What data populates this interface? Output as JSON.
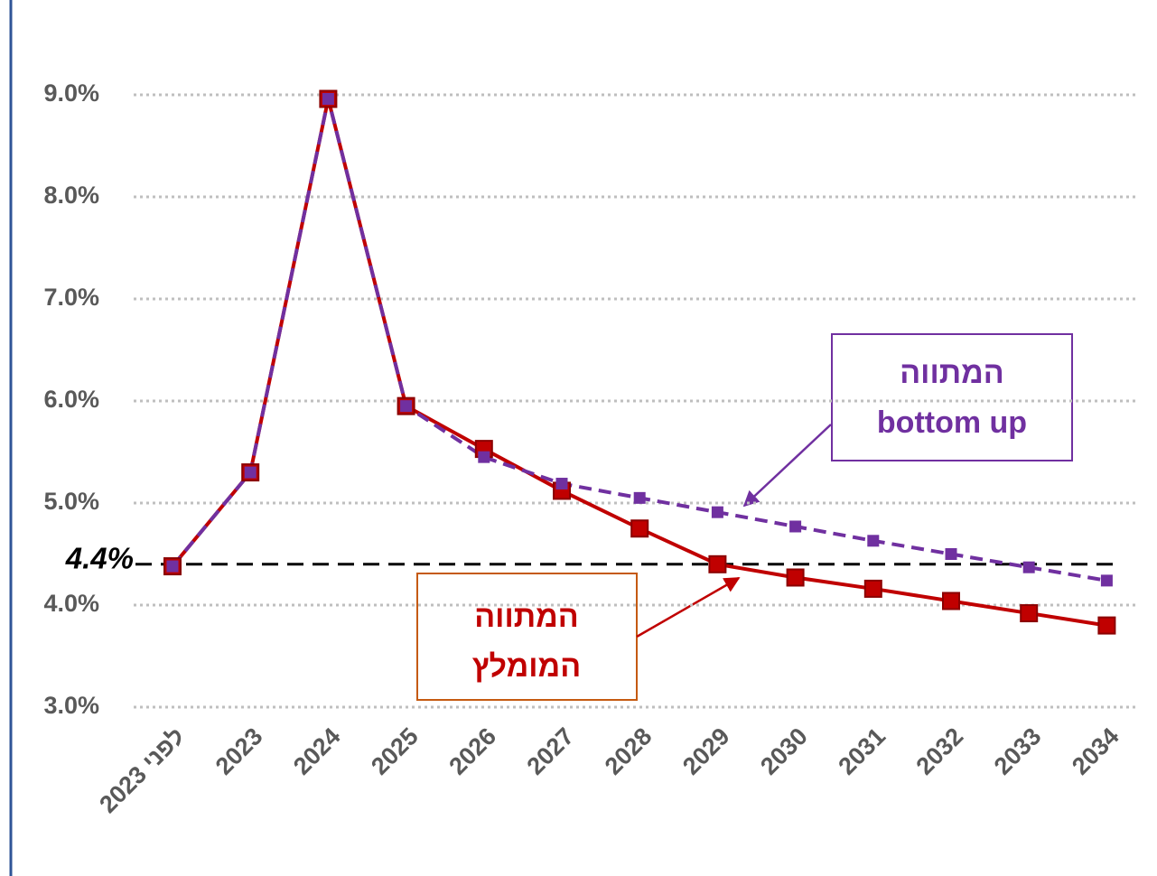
{
  "chart_data": {
    "type": "line",
    "categories": [
      "לפני 2023",
      "2023",
      "2024",
      "2025",
      "2026",
      "2027",
      "2028",
      "2029",
      "2030",
      "2031",
      "2032",
      "2033",
      "2034"
    ],
    "series": [
      {
        "color": "#c00000",
        "dash": false,
        "values": [
          4.38,
          5.3,
          8.96,
          5.95,
          5.53,
          5.12,
          4.75,
          4.4,
          4.27,
          4.16,
          4.04,
          3.92,
          3.8
        ]
      },
      {
        "color": "#7030a0",
        "dash": true,
        "values": [
          4.38,
          5.3,
          8.96,
          5.95,
          5.45,
          5.19,
          5.05,
          4.91,
          4.77,
          4.63,
          4.5,
          4.37,
          4.24
        ]
      }
    ],
    "ylim": [
      3,
      9
    ],
    "yticks": [
      {
        "value": 3,
        "label": "3.0%"
      },
      {
        "value": 4,
        "label": "4.0%"
      },
      {
        "value": 5,
        "label": "5.0%"
      },
      {
        "value": 6,
        "label": "6.0%"
      },
      {
        "value": 7,
        "label": "7.0%"
      },
      {
        "value": 8,
        "label": "8.0%"
      },
      {
        "value": 9,
        "label": "9.0%"
      }
    ],
    "grid": true,
    "reference_line": {
      "value": 4.4,
      "label": "4.4%"
    },
    "annotations": [
      {
        "lines": [
          "המתווה",
          "bottom up"
        ],
        "color": "#7030a0"
      },
      {
        "lines": [
          "המתווה",
          "המומלץ"
        ],
        "color": "#c00000"
      }
    ]
  }
}
